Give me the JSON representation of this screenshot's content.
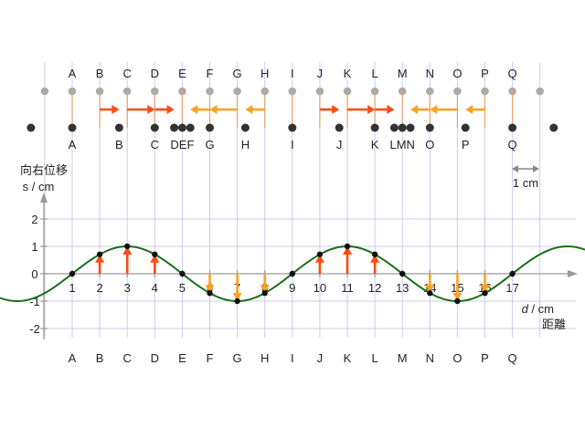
{
  "labels": [
    "A",
    "B",
    "C",
    "D",
    "E",
    "F",
    "G",
    "H",
    "I",
    "J",
    "K",
    "L",
    "M",
    "N",
    "O",
    "P",
    "Q"
  ],
  "moved_labels": [
    "A",
    "B",
    "C",
    "DEF",
    "G",
    "H",
    "I",
    "J",
    "K",
    "LMN",
    "O",
    "P",
    "Q"
  ],
  "equilibrium_positions": [
    0,
    1,
    2,
    3,
    4,
    5,
    6,
    7,
    8,
    9,
    10,
    11,
    12,
    13,
    14,
    15,
    16
  ],
  "displacements_cm": [
    0,
    0.707,
    1,
    0.707,
    0,
    -0.707,
    -1,
    -0.707,
    0,
    0.707,
    1,
    0.707,
    0,
    -0.707,
    -1,
    -0.707,
    0
  ],
  "y_axis": {
    "label_line1": "向右位移",
    "label_line2": "s / cm",
    "ticks": [
      "2",
      "1",
      "0",
      "-1",
      "-2"
    ]
  },
  "x_axis": {
    "label_var": "d",
    "label_unit": " / cm",
    "label_name": "距離",
    "ticks": [
      "1",
      "2",
      "3",
      "4",
      "5",
      "6",
      "7",
      "8",
      "9",
      "10",
      "11",
      "12",
      "13",
      "14",
      "15",
      "16",
      "17"
    ]
  },
  "scale_label": "1 cm",
  "colors": {
    "curve": "#1a6e1a",
    "arrow_right": "#ff4a12",
    "arrow_left": "#ffa020",
    "grid": "#ccccee",
    "dot_light": "#aaaaaa",
    "dot_dark": "#333333"
  }
}
